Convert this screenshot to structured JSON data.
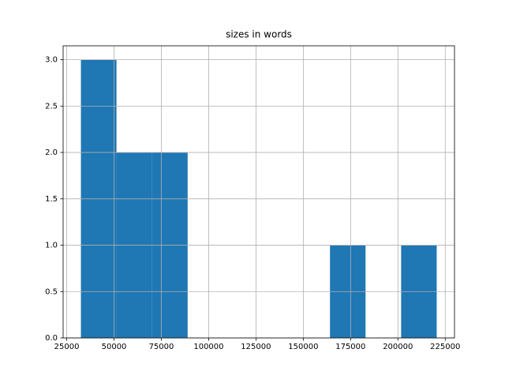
{
  "chart_data": {
    "type": "histogram",
    "title": "sizes in words",
    "bins": [
      32500,
      51300,
      70100,
      88900,
      107700,
      126500,
      145300,
      164100,
      182900,
      201700,
      220500
    ],
    "values": [
      3,
      2,
      2,
      0,
      0,
      0,
      0,
      1,
      0,
      1
    ],
    "color": "#1f77b4",
    "xlim": [
      23100,
      229900
    ],
    "xticks": [
      25000,
      50000,
      75000,
      100000,
      125000,
      150000,
      175000,
      200000,
      225000
    ],
    "ylim": [
      0,
      3.15
    ],
    "yticks": [
      {
        "value": 0,
        "label": "0.0"
      },
      {
        "value": 0.5,
        "label": "0.5"
      },
      {
        "value": 1,
        "label": "1.0"
      },
      {
        "value": 1.5,
        "label": "1.5"
      },
      {
        "value": 2,
        "label": "2.0"
      },
      {
        "value": 2.5,
        "label": "2.5"
      },
      {
        "value": 3,
        "label": "3.0"
      }
    ],
    "grid": true
  }
}
